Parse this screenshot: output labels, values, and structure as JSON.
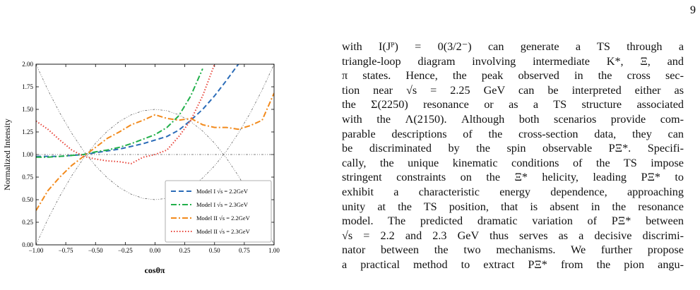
{
  "page_number": "9",
  "chart_data": {
    "type": "line",
    "ylabel": "Normalized Intensity",
    "xlabel": "cosθπ",
    "xlim": [
      -1,
      1
    ],
    "ylim": [
      0,
      2
    ],
    "xticks": [
      {
        "value": -1,
        "label": "−1.00"
      },
      {
        "value": -0.75,
        "label": "−0.75"
      },
      {
        "value": -0.5,
        "label": "−0.50"
      },
      {
        "value": -0.25,
        "label": "−0.25"
      },
      {
        "value": 0,
        "label": "0.00"
      },
      {
        "value": 0.25,
        "label": "0.25"
      },
      {
        "value": 0.5,
        "label": "0.50"
      },
      {
        "value": 0.75,
        "label": "0.75"
      },
      {
        "value": 1,
        "label": "1.00"
      }
    ],
    "yticks": [
      {
        "value": 0,
        "label": "0.00"
      },
      {
        "value": 0.25,
        "label": "0.25"
      },
      {
        "value": 0.5,
        "label": "0.50"
      },
      {
        "value": 0.75,
        "label": "0.75"
      },
      {
        "value": 1,
        "label": "1.00"
      },
      {
        "value": 1.25,
        "label": "1.25"
      },
      {
        "value": 1.5,
        "label": "1.50"
      },
      {
        "value": 1.75,
        "label": "1.75"
      },
      {
        "value": 2,
        "label": "2.00"
      }
    ],
    "x": [
      -1,
      -0.9,
      -0.8,
      -0.7,
      -0.6,
      -0.5,
      -0.4,
      -0.3,
      -0.2,
      -0.1,
      0,
      0.1,
      0.2,
      0.3,
      0.4,
      0.5,
      0.6,
      0.7,
      0.8,
      0.9,
      1
    ],
    "series": [
      {
        "color": "#555555",
        "linestyle": "dashdotdot",
        "values": [
          0,
          0.285,
          0.54,
          0.765,
          0.96,
          1.125,
          1.26,
          1.365,
          1.44,
          1.485,
          1.5,
          1.485,
          1.44,
          1.365,
          1.26,
          1.125,
          0.96,
          0.765,
          0.54,
          0.285,
          0
        ]
      },
      {
        "color": "#555555",
        "linestyle": "dashdotdot",
        "values": [
          2,
          1.715,
          1.46,
          1.235,
          1.04,
          0.875,
          0.74,
          0.635,
          0.56,
          0.515,
          0.5,
          0.515,
          0.56,
          0.635,
          0.74,
          0.875,
          1.04,
          1.235,
          1.46,
          1.715,
          2
        ]
      },
      {
        "color": "#555555",
        "linestyle": "dashdotdot",
        "values": [
          1,
          1,
          1,
          1,
          1,
          1,
          1,
          1,
          1,
          1,
          1,
          1,
          1,
          1,
          1,
          1,
          1,
          1,
          1,
          1,
          1
        ]
      },
      {
        "name": "Model I  √s = 2.2GeV",
        "color": "#2b6cb8",
        "linestyle": "dashed",
        "values": [
          0.98,
          0.98,
          0.98,
          0.99,
          1.0,
          1.02,
          1.04,
          1.06,
          1.09,
          1.12,
          1.16,
          1.2,
          1.27,
          1.38,
          1.5,
          1.65,
          1.82,
          2.0,
          null,
          null,
          null
        ]
      },
      {
        "name": "Model I  √s = 2.3GeV",
        "color": "#22b04b",
        "linestyle": "dashdot",
        "values": [
          0.97,
          0.97,
          0.98,
          0.99,
          1.0,
          1.03,
          1.05,
          1.08,
          1.12,
          1.17,
          1.22,
          1.3,
          1.43,
          1.65,
          1.95,
          null,
          null,
          null,
          null,
          null,
          null
        ]
      },
      {
        "name": "Model II  √s = 2.2GeV",
        "color": "#f28a1c",
        "linestyle": "dashdot",
        "values": [
          0.38,
          0.6,
          0.75,
          0.88,
          0.98,
          1.08,
          1.18,
          1.25,
          1.33,
          1.38,
          1.44,
          1.4,
          1.38,
          1.4,
          1.33,
          1.3,
          1.3,
          1.28,
          1.32,
          1.38,
          1.68
        ]
      },
      {
        "name": "Model II  √s = 2.3GeV",
        "color": "#e8443a",
        "linestyle": "dotted",
        "values": [
          1.37,
          1.28,
          1.16,
          1.05,
          0.98,
          0.95,
          0.93,
          0.92,
          0.9,
          0.97,
          1.0,
          1.05,
          1.2,
          1.38,
          1.65,
          2.0,
          null,
          null,
          null,
          null,
          null
        ]
      }
    ]
  },
  "paragraph": [
    "with I(Jᴾ) = 0(3/2⁻) can generate a TS through a",
    "triangle-loop diagram involving intermediate K*, Ξ, and",
    "π states. Hence, the peak observed in the cross sec-",
    "tion near √s = 2.25 GeV can be interpreted either as",
    "the Σ(2250) resonance or as a TS structure associated",
    "with the Λ(2150). Although both scenarios provide com-",
    "parable descriptions of the cross-section data, they can",
    "be discriminated by the spin observable PΞ*. Specifi-",
    "cally, the unique kinematic conditions of the TS impose",
    "stringent constraints on the Ξ* helicity, leading PΞ* to",
    "exhibit a characteristic energy dependence, approaching",
    "unity at the TS position, that is absent in the resonance",
    "model. The predicted dramatic variation of PΞ* between",
    "√s = 2.2 and 2.3 GeV thus serves as a decisive discrimi-",
    "nator between the two mechanisms. We further propose",
    "a practical method to extract PΞ* from the pion angu-"
  ]
}
